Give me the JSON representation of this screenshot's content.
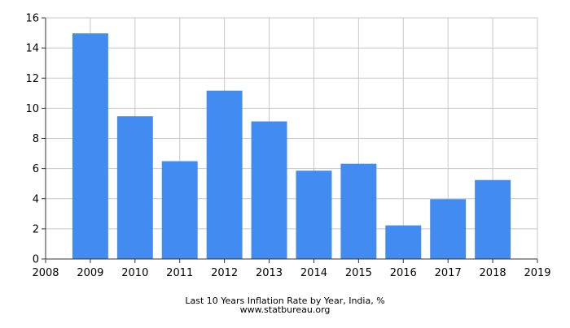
{
  "chart_data": {
    "type": "bar",
    "title": "Last 10 Years Inflation Rate by Year, India, %",
    "subtitle": "www.statbureau.org",
    "xlabel": "",
    "ylabel": "",
    "x": [
      2009,
      2010,
      2011,
      2012,
      2013,
      2014,
      2015,
      2016,
      2017,
      2018
    ],
    "values": [
      14.97,
      9.47,
      6.49,
      11.17,
      9.13,
      5.86,
      6.32,
      2.23,
      3.97,
      5.24
    ],
    "xlim": [
      2008,
      2019
    ],
    "xticks": [
      "2008",
      "2009",
      "2010",
      "2011",
      "2012",
      "2013",
      "2014",
      "2015",
      "2016",
      "2017",
      "2018",
      "2019"
    ],
    "ylim": [
      0,
      16
    ],
    "yticks": [
      "0",
      "2",
      "4",
      "6",
      "8",
      "10",
      "12",
      "14",
      "16"
    ],
    "grid": true,
    "bar_color": "#428bf0"
  }
}
